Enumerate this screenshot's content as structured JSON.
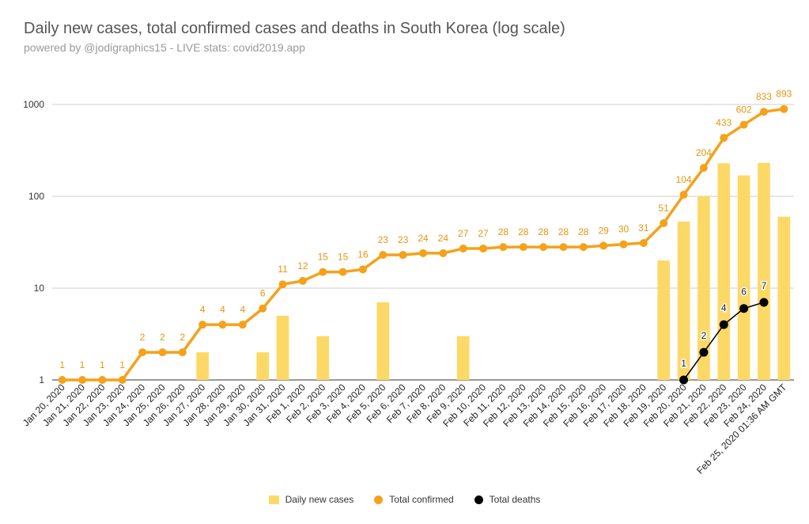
{
  "title": "Daily new cases, total confirmed cases and deaths in South Korea (log scale)",
  "subtitle": "powered by @jodigraphics15 - LIVE stats: covid2019.app",
  "colors": {
    "daily": "#fcd967",
    "confirmed": "#f5a11a",
    "deaths": "#000000",
    "grid": "#cccccc",
    "label_confirmed": "#e6960f"
  },
  "chart_data": {
    "type": "bar",
    "scale": "log",
    "ylim": [
      1,
      1000
    ],
    "yticks": [
      "1",
      "10",
      "100",
      "1000"
    ],
    "categories": [
      "Jan 20, 2020",
      "Jan 21, 2020",
      "Jan 22, 2020",
      "Jan 23, 2020",
      "Jan 24, 2020",
      "Jan 25, 2020",
      "Jan 26, 2020",
      "Jan 27, 2020",
      "Jan 28, 2020",
      "Jan 29, 2020",
      "Jan 30, 2020",
      "Jan 31, 2020",
      "Feb 1, 2020",
      "Feb 2, 2020",
      "Feb 3, 2020",
      "Feb 4, 2020",
      "Feb 5, 2020",
      "Feb 6, 2020",
      "Feb 7, 2020",
      "Feb 8, 2020",
      "Feb 9, 2020",
      "Feb 10, 2020",
      "Feb 11, 2020",
      "Feb 12, 2020",
      "Feb 13, 2020",
      "Feb 14, 2020",
      "Feb 15, 2020",
      "Feb 16, 2020",
      "Feb 17, 2020",
      "Feb 18, 2020",
      "Feb 19, 2020",
      "Feb 20, 2020",
      "Feb 21, 2020",
      "Feb 22, 2020",
      "Feb 23, 2020",
      "Feb 24, 2020",
      "Feb 25, 2020 01:36 AM GMT"
    ],
    "series": [
      {
        "name": "Daily new cases",
        "type": "bar",
        "values": [
          null,
          null,
          null,
          null,
          null,
          null,
          null,
          2,
          null,
          null,
          2,
          5,
          null,
          3,
          null,
          null,
          7,
          null,
          null,
          null,
          3,
          null,
          null,
          null,
          null,
          null,
          null,
          null,
          null,
          null,
          20,
          53,
          100,
          229,
          169,
          231,
          60
        ]
      },
      {
        "name": "Total confirmed",
        "type": "line",
        "values": [
          1,
          1,
          1,
          1,
          2,
          2,
          2,
          4,
          4,
          4,
          6,
          11,
          12,
          15,
          15,
          16,
          23,
          23,
          24,
          24,
          27,
          27,
          28,
          28,
          28,
          28,
          28,
          29,
          30,
          31,
          51,
          104,
          204,
          433,
          602,
          833,
          893
        ],
        "labels": [
          "1",
          "1",
          "1",
          "1",
          "2",
          "2",
          "2",
          "4",
          "4",
          "4",
          "6",
          "11",
          "12",
          "15",
          "15",
          "16",
          "23",
          "23",
          "24",
          "24",
          "27",
          "27",
          "28",
          "28",
          "28",
          "28",
          "28",
          "29",
          "30",
          "31",
          "51",
          "104",
          "204",
          "433",
          "602",
          "833",
          "893"
        ]
      },
      {
        "name": "Total deaths",
        "type": "line",
        "values": [
          null,
          null,
          null,
          null,
          null,
          null,
          null,
          null,
          null,
          null,
          null,
          null,
          null,
          null,
          null,
          null,
          null,
          null,
          null,
          null,
          null,
          null,
          null,
          null,
          null,
          null,
          null,
          null,
          null,
          null,
          null,
          1,
          2,
          4,
          6,
          7,
          null
        ],
        "labels": [
          null,
          null,
          null,
          null,
          null,
          null,
          null,
          null,
          null,
          null,
          null,
          null,
          null,
          null,
          null,
          null,
          null,
          null,
          null,
          null,
          null,
          null,
          null,
          null,
          null,
          null,
          null,
          null,
          null,
          null,
          null,
          "1",
          "2",
          "4",
          "6",
          "7",
          null
        ]
      }
    ],
    "legend_position": "bottom"
  },
  "legend": {
    "daily": "Daily new cases",
    "confirmed": "Total confirmed",
    "deaths": "Total deaths"
  }
}
